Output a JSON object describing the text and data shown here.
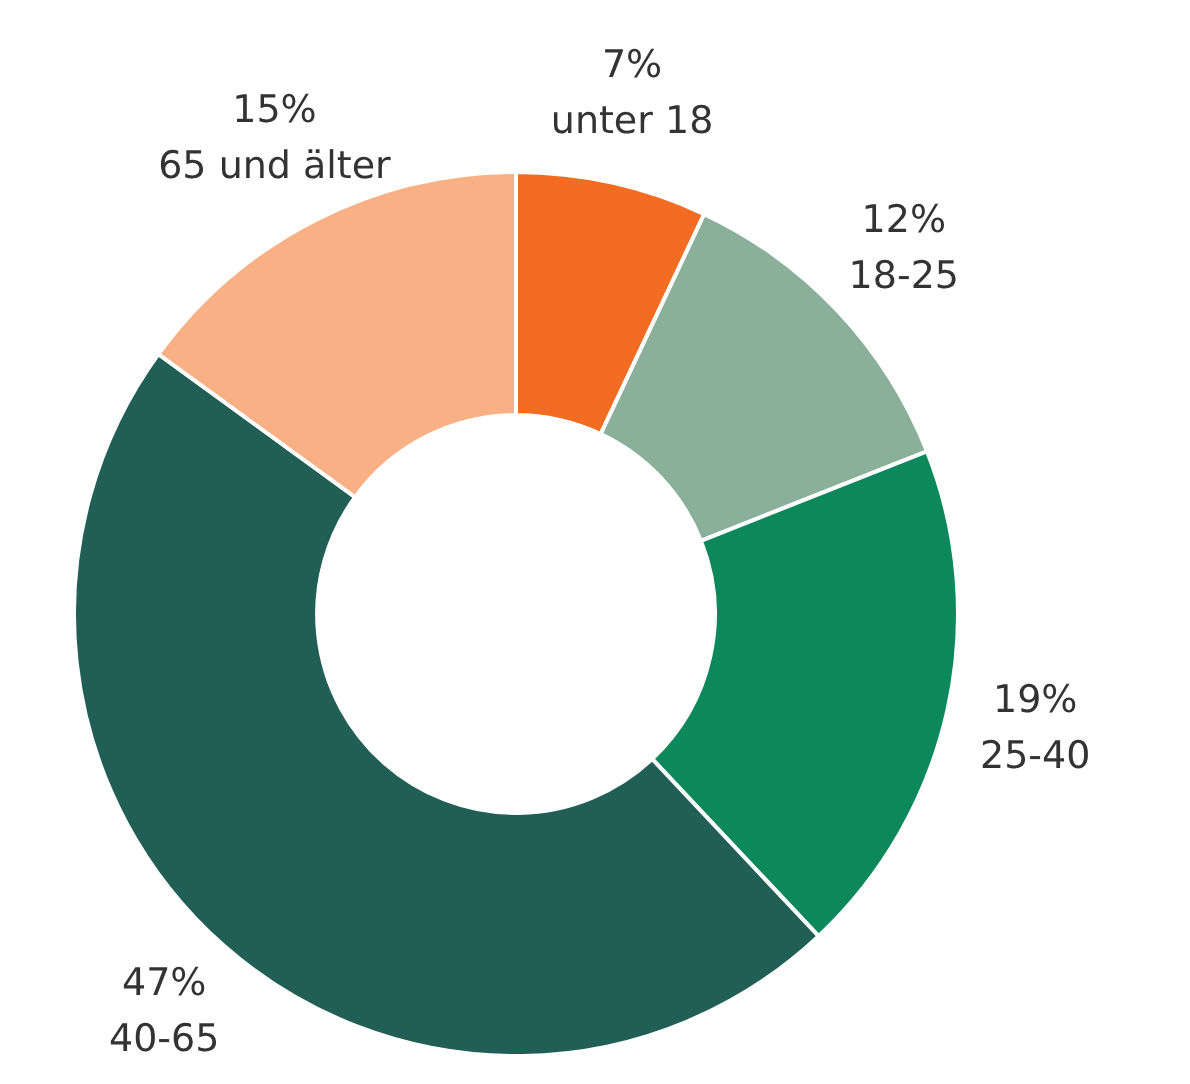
{
  "chart_data": {
    "type": "donut",
    "categories": [
      "unter 18",
      "18-25",
      "25-40",
      "40-65",
      "65 und älter"
    ],
    "values": [
      7,
      12,
      19,
      47,
      15
    ],
    "value_labels": [
      "7%",
      "12%",
      "19%",
      "47%",
      "15%"
    ],
    "colors": [
      "#f26d21",
      "#8ab09a",
      "#0d875c",
      "#215e55",
      "#f8b084"
    ],
    "legend": false
  }
}
